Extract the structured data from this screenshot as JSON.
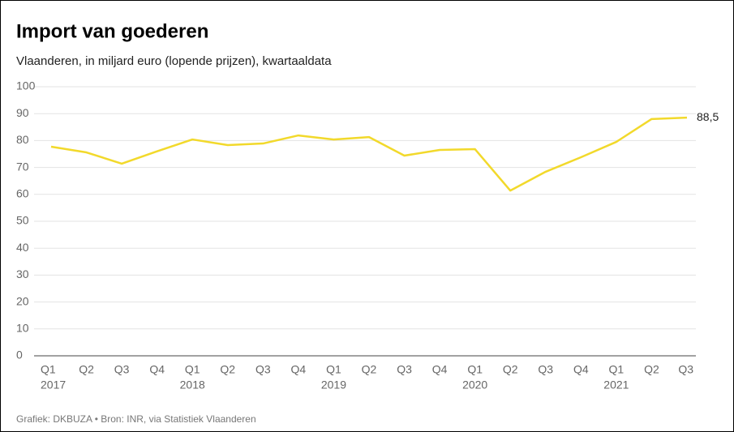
{
  "chart_data": {
    "type": "line",
    "title": "Import van goederen",
    "subtitle": "Vlaanderen, in miljard euro (lopende prijzen), kwartaaldata",
    "source": "Grafiek: DKBUZA • Bron: INR, via Statistiek Vlaanderen",
    "categories": [
      "Q1",
      "Q2",
      "Q3",
      "Q4",
      "Q1",
      "Q2",
      "Q3",
      "Q4",
      "Q1",
      "Q2",
      "Q3",
      "Q4",
      "Q1",
      "Q2",
      "Q3",
      "Q4",
      "Q1",
      "Q2",
      "Q3"
    ],
    "years": [
      "2017",
      null,
      null,
      null,
      "2018",
      null,
      null,
      null,
      "2019",
      null,
      null,
      null,
      "2020",
      null,
      null,
      null,
      "2021",
      null,
      null
    ],
    "series": [
      {
        "name": "Import",
        "color": "#f2d92b",
        "values": [
          77.7,
          75.6,
          71.4,
          76,
          80.4,
          78.3,
          78.9,
          81.9,
          80.4,
          81.3,
          74.4,
          76.5,
          76.8,
          61.4,
          68.4,
          73.8,
          79.5,
          88,
          88.5
        ],
        "value_labels": [
          null,
          null,
          null,
          null,
          null,
          null,
          null,
          null,
          null,
          null,
          null,
          null,
          null,
          null,
          null,
          null,
          null,
          null,
          "88,5"
        ]
      }
    ],
    "ylim": [
      0,
      100
    ],
    "yticks": [
      0,
      10,
      20,
      30,
      40,
      50,
      60,
      70,
      80,
      90,
      100
    ],
    "grid": true
  }
}
